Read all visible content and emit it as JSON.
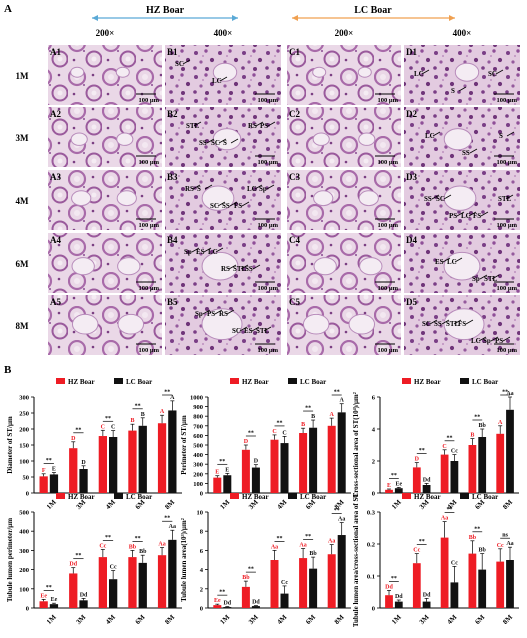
{
  "panel_a": {
    "letter": "A",
    "hz_title": "HZ Boar",
    "lc_title": "LC Boar",
    "mags": [
      "200×",
      "400×",
      "200×",
      "400×"
    ],
    "rows": [
      "1M",
      "3M",
      "4M",
      "6M",
      "8M"
    ],
    "scale_bar": "100 μm",
    "cells": [
      [
        "A1",
        "B1",
        "C1",
        "D1"
      ],
      [
        "A2",
        "B2",
        "C2",
        "D2"
      ],
      [
        "A3",
        "B3",
        "C3",
        "D3"
      ],
      [
        "A4",
        "B4",
        "C4",
        "D4"
      ],
      [
        "A5",
        "B5",
        "C5",
        "D5"
      ]
    ],
    "annotations": {
      "B1": [
        "SC",
        "LC"
      ],
      "D1": [
        "LC",
        "S",
        "SC"
      ],
      "B2": [
        "STL",
        "S",
        "PS",
        "SC",
        "RS",
        "SS"
      ],
      "D2": [
        "LC",
        "SS",
        "S"
      ],
      "B3": [
        "S",
        "FS",
        "RS",
        "SS",
        "Sp",
        "SC",
        "LC"
      ],
      "D3": [
        "SC",
        "FS",
        "SS",
        "LC",
        "STL",
        "PS"
      ],
      "B4": [
        "LC",
        "SS",
        "ES",
        "STL",
        "Sp",
        "RS"
      ],
      "D4": [
        "LC",
        "STL",
        "ES",
        "Sp"
      ],
      "B5": [
        "RS",
        "STL",
        "PS",
        "ES",
        "Sp",
        "SC"
      ],
      "D5": [
        "FS",
        "PS",
        "STL",
        "Sp",
        "SS",
        "LC",
        "SC"
      ]
    },
    "colors": {
      "hz_arrow": "#5aa9d6",
      "lc_arrow": "#f0a050",
      "stain_bg": "#ecdbe8",
      "stain_dark": "#8a4d93",
      "stain_light": "#d9b9d6"
    }
  },
  "panel_b": {
    "letter": "B",
    "legend": {
      "hz": "HZ Boar",
      "lc": "LC Boar"
    },
    "colors": {
      "hz": "#ee1c24",
      "lc": "#111111"
    },
    "chart_data": [
      {
        "type": "bar",
        "ylabel": "Diameter of ST/μm",
        "ylim": [
          0,
          300
        ],
        "yticks": [
          0,
          50,
          100,
          150,
          200,
          250,
          300
        ],
        "categories": [
          "1M",
          "3M",
          "4M",
          "6M",
          "8M"
        ],
        "series": [
          {
            "name": "HZ Boar",
            "values": [
              52,
              140,
              178,
              195,
              218
            ],
            "errors": [
              8,
              20,
              18,
              20,
              25
            ],
            "letters": [
              "F",
              "D",
              "C",
              "B",
              "A"
            ]
          },
          {
            "name": "LC Boar",
            "values": [
              58,
              75,
              175,
              210,
              258
            ],
            "errors": [
              6,
              10,
              20,
              25,
              30
            ],
            "letters": [
              "E",
              "D",
              "C",
              "B",
              "A"
            ]
          }
        ],
        "sig": [
          "**",
          "**",
          "**",
          "**",
          "**"
        ]
      },
      {
        "type": "bar",
        "ylabel": "Perimeter of ST/μm",
        "ylim": [
          0,
          1000
        ],
        "yticks": [
          0,
          100,
          200,
          300,
          400,
          500,
          600,
          700,
          800,
          900,
          1000
        ],
        "categories": [
          "1M",
          "3M",
          "4M",
          "6M",
          "8M"
        ],
        "series": [
          {
            "name": "HZ Boar",
            "values": [
              160,
              450,
              555,
              625,
              700
            ],
            "errors": [
              20,
              50,
              50,
              50,
              80
            ],
            "letters": [
              "E",
              "D",
              "C",
              "B",
              "A"
            ]
          },
          {
            "name": "LC Boar",
            "values": [
              185,
              265,
              520,
              680,
              840
            ],
            "errors": [
              20,
              30,
              70,
              80,
              90
            ],
            "letters": [
              "E",
              "D",
              "C",
              "B",
              "A"
            ]
          }
        ],
        "sig": [
          "**",
          "**",
          "**",
          "**",
          "**"
        ]
      },
      {
        "type": "bar",
        "ylabel": "Cross-sectional area of ST(10⁴)/μm²",
        "ylim": [
          0,
          6
        ],
        "yticks": [
          0,
          2,
          4,
          6
        ],
        "categories": [
          "1M",
          "3M",
          "4M",
          "6M",
          "8M"
        ],
        "series": [
          {
            "name": "HZ Boar",
            "values": [
              0.2,
              1.6,
              2.4,
              3.0,
              3.7
            ],
            "errors": [
              0.05,
              0.3,
              0.3,
              0.4,
              0.5
            ],
            "letters": [
              "E",
              "D",
              "C",
              "B",
              "A"
            ]
          },
          {
            "name": "LC Boar",
            "values": [
              0.3,
              0.5,
              2.0,
              3.5,
              5.2
            ],
            "errors": [
              0.05,
              0.1,
              0.4,
              0.5,
              0.8
            ],
            "letters": [
              "Ee",
              "Dd",
              "Cc",
              "Bb",
              "Aa"
            ]
          }
        ],
        "sig": [
          "**",
          "**",
          "**",
          "**",
          "**"
        ]
      },
      {
        "type": "bar",
        "ylabel": "Tubule lumen perimeter/μm",
        "ylim": [
          0,
          500
        ],
        "yticks": [
          0,
          100,
          200,
          300,
          400,
          500
        ],
        "categories": [
          "1M",
          "3M",
          "4M",
          "6M",
          "8M"
        ],
        "series": [
          {
            "name": "HZ Boar",
            "values": [
              35,
              180,
              265,
              265,
              275
            ],
            "errors": [
              10,
              30,
              40,
              35,
              40
            ],
            "letters": [
              "Ee",
              "Dd",
              "Cc",
              "Bb",
              "Aa"
            ]
          },
          {
            "name": "LC Boar",
            "values": [
              20,
              40,
              150,
              235,
              355
            ],
            "errors": [
              5,
              10,
              45,
              40,
              50
            ],
            "letters": [
              "Ee",
              "Dd",
              "Cc",
              "Bb",
              "Aa"
            ]
          }
        ],
        "sig": [
          "**",
          "**",
          "**",
          "**",
          "**"
        ]
      },
      {
        "type": "bar",
        "ylabel": "Tubule lumen area(10³)/μm²",
        "ylim": [
          0,
          10
        ],
        "yticks": [
          0,
          2,
          4,
          6,
          8,
          10
        ],
        "categories": [
          "1M",
          "3M",
          "4M",
          "6M",
          "8M"
        ],
        "series": [
          {
            "name": "HZ Boar",
            "values": [
              0.3,
              2.2,
              5.0,
              5.2,
              5.6
            ],
            "errors": [
              0.1,
              0.6,
              1.0,
              1.0,
              1.0
            ],
            "letters": [
              "Ee",
              "Bb",
              "Aa",
              "Aa",
              "Aa"
            ]
          },
          {
            "name": "LC Boar",
            "values": [
              0.1,
              0.2,
              1.5,
              4.1,
              7.6
            ],
            "errors": [
              0.05,
              0.05,
              0.8,
              1.2,
              1.3
            ],
            "letters": [
              "Dd",
              "Dd",
              "Cc",
              "Bb",
              "Aa"
            ]
          }
        ],
        "sig": [
          "**",
          "**",
          "**",
          "**",
          "**"
        ]
      },
      {
        "type": "bar",
        "ylabel": "Tubule lumen area/cross-sectional area of ST",
        "ylim": [
          0,
          0.3
        ],
        "yticks": [
          0,
          0.1,
          0.2,
          0.3
        ],
        "categories": [
          "1M",
          "3M",
          "4M",
          "6M",
          "8M"
        ],
        "series": [
          {
            "name": "HZ Boar",
            "values": [
              0.04,
              0.14,
              0.22,
              0.17,
              0.145
            ],
            "errors": [
              0.015,
              0.03,
              0.05,
              0.04,
              0.04
            ],
            "letters": [
              "Dd",
              "Cc",
              "Aa",
              "Bb",
              "Cc"
            ]
          },
          {
            "name": "LC Boar",
            "values": [
              0.02,
              0.02,
              0.08,
              0.12,
              0.15
            ],
            "errors": [
              0.005,
              0.01,
              0.05,
              0.05,
              0.04
            ],
            "letters": [
              "Dd",
              "Dd",
              "Cc",
              "Bb",
              "Aa"
            ]
          }
        ],
        "sig": [
          "**",
          "**",
          "**",
          "**",
          "ns"
        ]
      }
    ]
  }
}
